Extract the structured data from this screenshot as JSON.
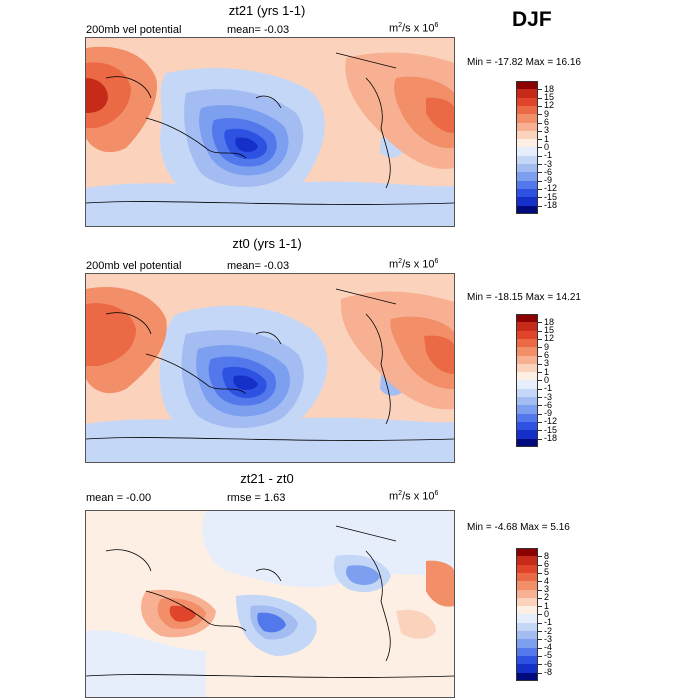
{
  "season": "DJF",
  "panels": [
    {
      "title": "zt21 (yrs 1-1)",
      "left_text": "200mb vel potential",
      "mid_text": "mean=  -0.03",
      "units_text": "m",
      "units_sup1": "2",
      "units_mid": "/s x 10",
      "units_sup2": "6",
      "minmax": "Min = -17.82 Max =  16.16"
    },
    {
      "title": "zt0 (yrs 1-1)",
      "left_text": "200mb vel potential",
      "mid_text": "mean=  -0.03",
      "units_text": "m",
      "units_sup1": "2",
      "units_mid": "/s x 10",
      "units_sup2": "6",
      "minmax": "Min = -18.15 Max =  14.21"
    },
    {
      "title": "zt21 - zt0",
      "left_text": "mean =  -0.00",
      "mid_text": "rmse =   1.63",
      "units_text": "m",
      "units_sup1": "2",
      "units_mid": "/s x 10",
      "units_sup2": "6",
      "minmax": "Min =  -4.68 Max =   5.16"
    }
  ],
  "colorbars": [
    {
      "labels": [
        "18",
        "15",
        "12",
        "9",
        "6",
        "3",
        "1",
        "0",
        "-1",
        "-3",
        "-6",
        "-9",
        "-12",
        "-15",
        "-18"
      ],
      "colors": [
        "#8b0000",
        "#c62b1a",
        "#e0452c",
        "#eb6a45",
        "#f28e68",
        "#f7b092",
        "#fbd3bd",
        "#fdefe4",
        "#e6eefc",
        "#c5d7f7",
        "#a3bdf2",
        "#7d9ff0",
        "#5378eb",
        "#2d52e2",
        "#1530c8",
        "#000a7d"
      ]
    },
    {
      "labels": [
        "18",
        "15",
        "12",
        "9",
        "6",
        "3",
        "1",
        "0",
        "-1",
        "-3",
        "-6",
        "-9",
        "-12",
        "-15",
        "-18"
      ],
      "colors": [
        "#8b0000",
        "#c62b1a",
        "#e0452c",
        "#eb6a45",
        "#f28e68",
        "#f7b092",
        "#fbd3bd",
        "#fdefe4",
        "#e6eefc",
        "#c5d7f7",
        "#a3bdf2",
        "#7d9ff0",
        "#5378eb",
        "#2d52e2",
        "#1530c8",
        "#000a7d"
      ]
    },
    {
      "labels": [
        "8",
        "6",
        "5",
        "4",
        "3",
        "2",
        "1",
        "0",
        "-1",
        "-2",
        "-3",
        "-4",
        "-5",
        "-6",
        "-8"
      ],
      "colors": [
        "#8b0000",
        "#c62b1a",
        "#e0452c",
        "#eb6a45",
        "#f28e68",
        "#f7b092",
        "#fbd3bd",
        "#fdefe4",
        "#e6eefc",
        "#c5d7f7",
        "#a3bdf2",
        "#7d9ff0",
        "#5378eb",
        "#2d52e2",
        "#1530c8",
        "#000a7d"
      ]
    }
  ],
  "chart_data": [
    {
      "type": "heatmap",
      "title": "zt21 (yrs 1-1)",
      "subtitle": "200mb vel potential",
      "units": "m^2/s x 10^6",
      "mean": -0.03,
      "min": -17.82,
      "max": 16.16,
      "contour_levels": [
        -18,
        -15,
        -12,
        -9,
        -6,
        -3,
        -1,
        0,
        1,
        3,
        6,
        9,
        12,
        15,
        18
      ]
    },
    {
      "type": "heatmap",
      "title": "zt0 (yrs 1-1)",
      "subtitle": "200mb vel potential",
      "units": "m^2/s x 10^6",
      "mean": -0.03,
      "min": -18.15,
      "max": 14.21,
      "contour_levels": [
        -18,
        -15,
        -12,
        -9,
        -6,
        -3,
        -1,
        0,
        1,
        3,
        6,
        9,
        12,
        15,
        18
      ]
    },
    {
      "type": "heatmap",
      "title": "zt21 - zt0",
      "units": "m^2/s x 10^6",
      "mean": -0.0,
      "rmse": 1.63,
      "min": -4.68,
      "max": 5.16,
      "contour_levels": [
        -8,
        -6,
        -5,
        -4,
        -3,
        -2,
        -1,
        0,
        1,
        2,
        3,
        4,
        5,
        6,
        8
      ]
    }
  ]
}
